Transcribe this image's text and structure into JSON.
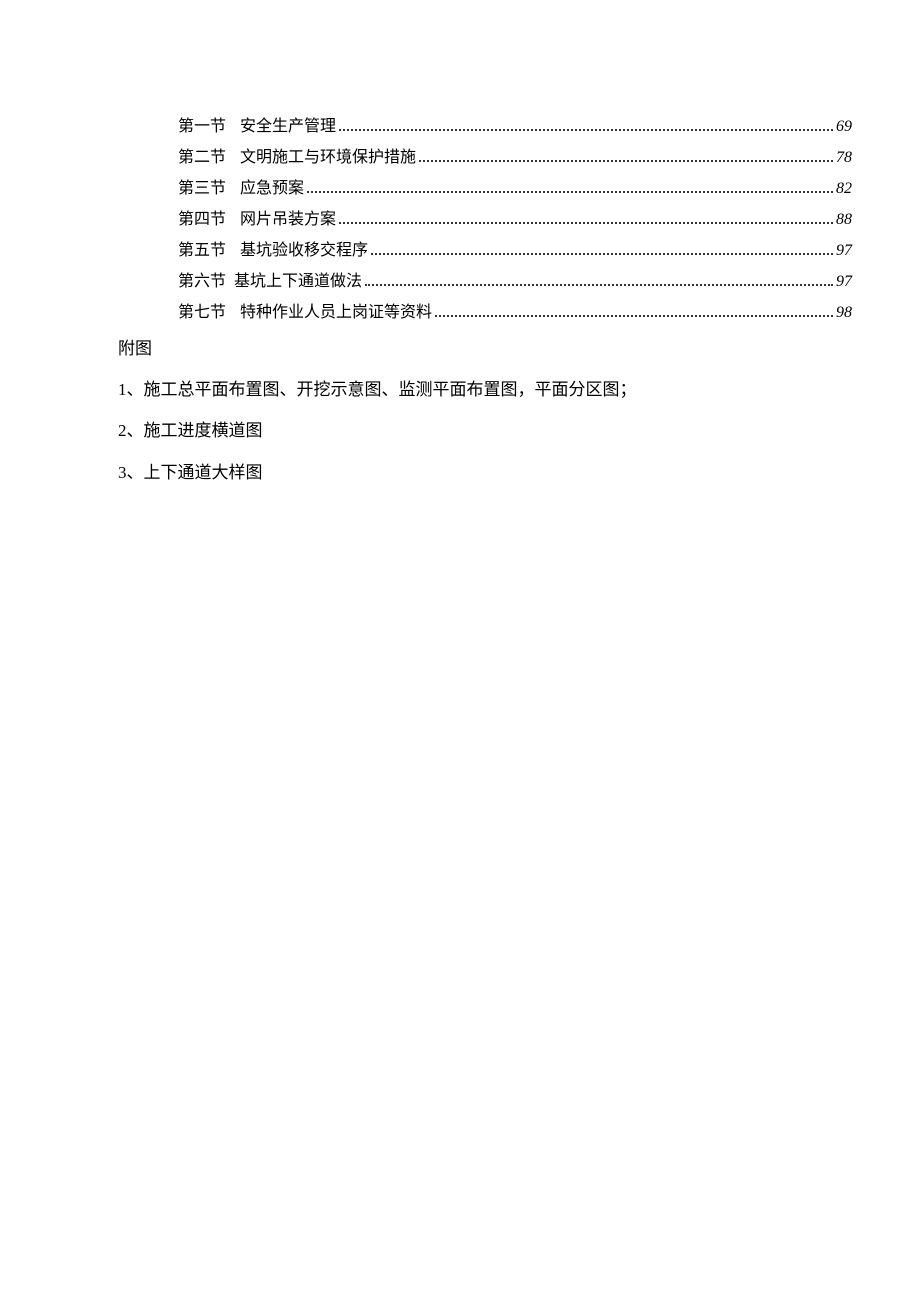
{
  "page": {
    "background_color": "#ffffff",
    "text_color": "#000000",
    "font_family": "SimSun",
    "page_number_font_family": "Times New Roman",
    "page_number_style": "italic",
    "toc_font_size": 16,
    "appendix_font_size": 17
  },
  "toc": {
    "entries": [
      {
        "section": "第一节",
        "title": "安全生产管理",
        "page": "69",
        "tight": false
      },
      {
        "section": "第二节",
        "title": "文明施工与环境保护措施",
        "page": "78",
        "tight": false
      },
      {
        "section": "第三节",
        "title": "应急预案",
        "page": "82",
        "tight": false
      },
      {
        "section": "第四节",
        "title": "网片吊装方案",
        "page": "88",
        "tight": false
      },
      {
        "section": "第五节",
        "title": "基坑验收移交程序",
        "page": "97",
        "tight": false
      },
      {
        "section": "第六节",
        "title": "基坑上下通道做法",
        "page": "97",
        "tight": true
      },
      {
        "section": "第七节",
        "title": "特种作业人员上岗证等资料",
        "page": "98",
        "tight": false
      }
    ]
  },
  "appendix": {
    "heading": "附图",
    "items": [
      "1、施工总平面布置图、开挖示意图、监测平面布置图，平面分区图；",
      "2、施工进度横道图",
      "3、上下通道大样图"
    ]
  }
}
